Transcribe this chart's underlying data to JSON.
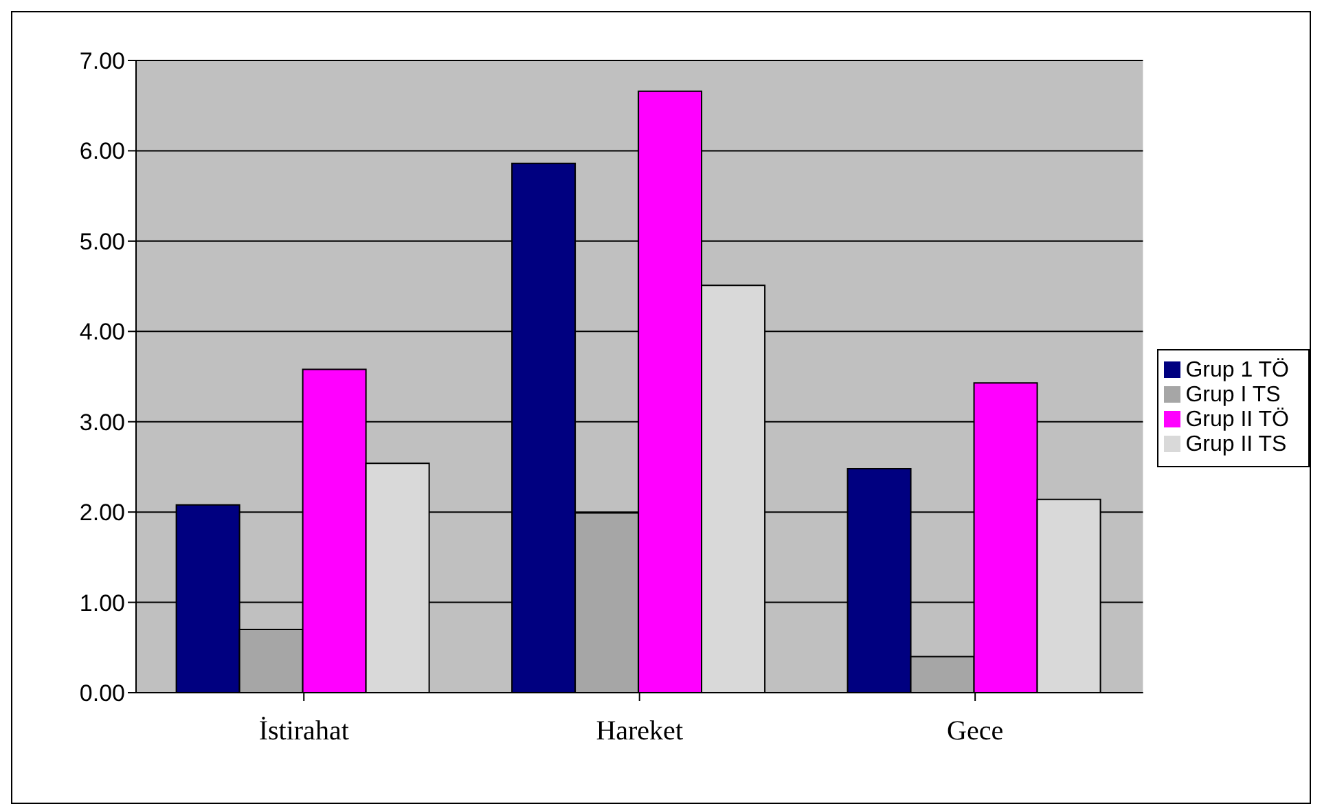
{
  "chart_data": {
    "type": "bar",
    "categories": [
      "İstirahat",
      "Hareket",
      "Gece"
    ],
    "series": [
      {
        "name": "Grup 1 TÖ",
        "color": "#000080",
        "values": [
          2.08,
          5.86,
          2.48
        ]
      },
      {
        "name": "Grup I TS",
        "color": "#a6a6a6",
        "values": [
          0.7,
          1.99,
          0.4
        ]
      },
      {
        "name": "Grup II TÖ",
        "color": "#ff00ff",
        "values": [
          3.58,
          6.66,
          3.43
        ]
      },
      {
        "name": "Grup II TS",
        "color": "#d9d9d9",
        "values": [
          2.54,
          4.51,
          2.14
        ]
      }
    ],
    "ylim": [
      0,
      7
    ],
    "yticks": [
      {
        "value": 0,
        "label": "0.00"
      },
      {
        "value": 1,
        "label": "1.00"
      },
      {
        "value": 2,
        "label": "2.00"
      },
      {
        "value": 3,
        "label": "3.00"
      },
      {
        "value": 4,
        "label": "4.00"
      },
      {
        "value": 5,
        "label": "5.00"
      },
      {
        "value": 6,
        "label": "6.00"
      },
      {
        "value": 7,
        "label": "7.00"
      }
    ],
    "grid": "y",
    "legend": "right"
  }
}
